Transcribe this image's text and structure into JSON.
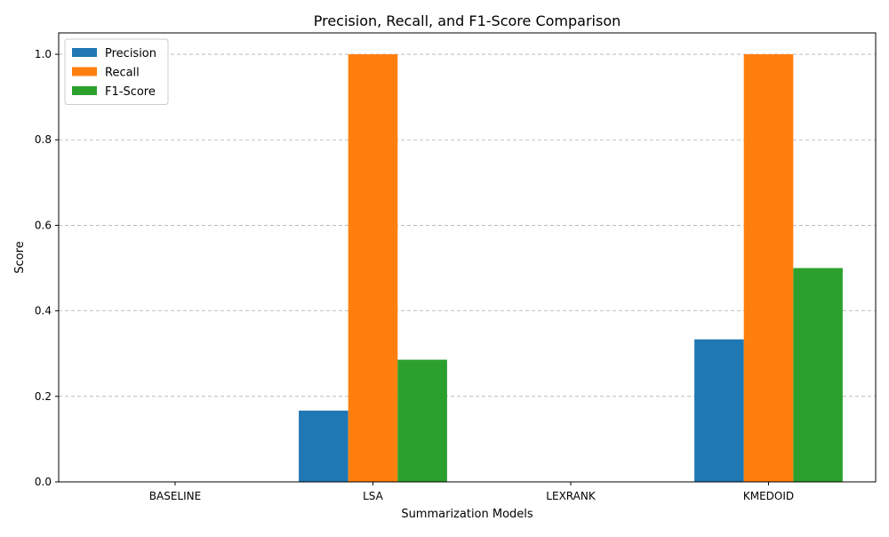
{
  "chart_data": {
    "type": "bar",
    "title": "Precision, Recall, and F1-Score Comparison",
    "xlabel": "Summarization Models",
    "ylabel": "Score",
    "categories": [
      "BASELINE",
      "LSA",
      "LEXRANK",
      "KMEDOID"
    ],
    "series": [
      {
        "name": "Precision",
        "color": "#1f77b4",
        "values": [
          0.0,
          0.1667,
          0.0,
          0.3333
        ]
      },
      {
        "name": "Recall",
        "color": "#ff7f0e",
        "values": [
          0.0,
          1.0,
          0.0,
          1.0
        ]
      },
      {
        "name": "F1-Score",
        "color": "#2ca02c",
        "values": [
          0.0,
          0.2857,
          0.0,
          0.5
        ]
      }
    ],
    "ylim": [
      0,
      1.05
    ],
    "yticks": [
      "0.0",
      "0.2",
      "0.4",
      "0.6",
      "0.8",
      "1.0"
    ],
    "grid": "y-axis dashed",
    "legend_position": "top-left"
  }
}
